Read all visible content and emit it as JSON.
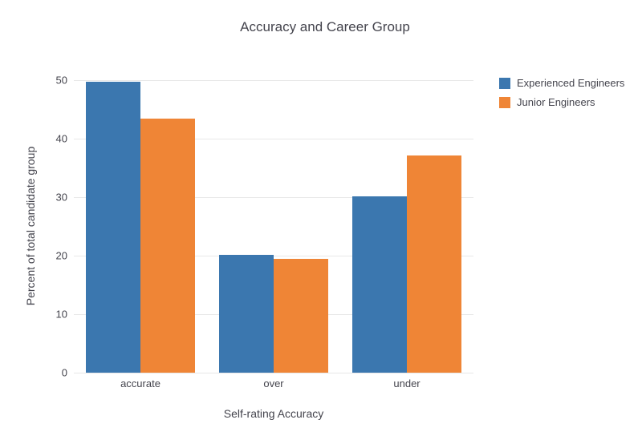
{
  "chart_data": {
    "type": "bar",
    "title": "Accuracy and Career Group",
    "xlabel": "Self-rating Accuracy",
    "ylabel": "Percent of total candidate group",
    "categories": [
      "accurate",
      "over",
      "under"
    ],
    "series": [
      {
        "name": "Experienced Engineers",
        "color": "#3b77af",
        "values": [
          49.7,
          20.2,
          30.2
        ]
      },
      {
        "name": "Junior Engineers",
        "color": "#ef8536",
        "values": [
          43.4,
          19.5,
          37.1
        ]
      }
    ],
    "ylim": [
      0,
      50
    ],
    "yticks": [
      0,
      10,
      20,
      30,
      40,
      50
    ],
    "grid": true,
    "legend_position": "top-right",
    "colors": {
      "gridline": "#e8e8e8",
      "text": "#44444d",
      "background": "#ffffff"
    }
  }
}
